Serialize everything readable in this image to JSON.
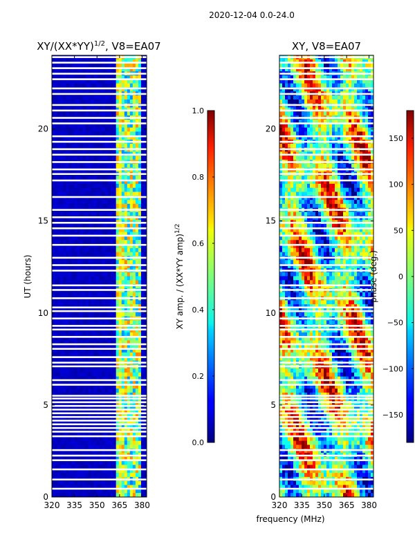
{
  "suptitle": "2020-12-04 0.0-24.0",
  "chart_data": [
    {
      "type": "heatmap",
      "title_base": "XY/(XX*YY)",
      "title_exp": "1/2",
      "title_suffix": ", V8=EA07",
      "xlabel": "",
      "ylabel": "UT (hours)",
      "xlim": [
        320,
        383
      ],
      "ylim": [
        0,
        24
      ],
      "xticks": [
        320,
        335,
        350,
        365,
        380
      ],
      "yticks": [
        0,
        5,
        10,
        15,
        20
      ],
      "colorbar": {
        "label_base": "XY amp. / (XX*YY amp)",
        "label_exp": "1/2",
        "range": [
          0.0,
          1.0
        ],
        "ticks": [
          "0.0",
          "0.2",
          "0.4",
          "0.6",
          "0.8",
          "1.0"
        ],
        "tick_values": [
          0.0,
          0.2,
          0.4,
          0.6,
          0.8,
          1.0
        ],
        "colormap": "jet"
      },
      "flagged_hours": [
        0.45,
        0.95,
        1.5,
        2.0,
        2.25,
        2.55,
        3.3,
        3.55,
        3.75,
        3.95,
        4.15,
        4.35,
        4.55,
        4.75,
        4.95,
        5.15,
        5.35,
        5.5,
        6.1,
        6.35,
        7.1,
        7.3,
        7.6,
        8.05,
        8.3,
        8.7,
        9.1,
        9.3,
        9.7,
        10.1,
        10.3,
        10.8,
        11.25,
        11.5,
        12.3,
        12.6,
        13.0,
        13.7,
        14.2,
        14.6,
        14.9,
        15.2,
        15.6,
        16.3,
        17.2,
        17.55,
        17.8,
        18.2,
        18.6,
        18.9,
        19.3,
        19.6,
        20.3,
        20.6,
        21.0,
        21.3,
        21.9,
        22.2,
        22.7,
        23.0,
        23.3,
        23.6,
        23.9
      ]
    },
    {
      "type": "heatmap",
      "title": "XY, V8=EA07",
      "xlabel": "frequency (MHz)",
      "ylabel": "",
      "xlim": [
        320,
        383
      ],
      "ylim": [
        0,
        24
      ],
      "xticks": [
        320,
        335,
        350,
        365,
        380
      ],
      "yticks": [
        0,
        5,
        10,
        15,
        20
      ],
      "colorbar": {
        "label": "phase (deg.)",
        "range": [
          -180,
          180
        ],
        "ticks": [
          "150",
          "100",
          "50",
          "0",
          "−50",
          "−100",
          "−150"
        ],
        "tick_values": [
          150,
          100,
          50,
          0,
          -50,
          -100,
          -150
        ],
        "colormap": "jet"
      },
      "flagged_hours": [
        0.45,
        0.95,
        1.5,
        2.0,
        2.25,
        2.55,
        3.3,
        3.55,
        3.75,
        3.95,
        4.15,
        4.35,
        4.55,
        4.75,
        4.95,
        5.15,
        5.35,
        5.5,
        6.1,
        6.35,
        7.1,
        7.3,
        7.6,
        8.05,
        8.3,
        8.7,
        9.1,
        9.3,
        9.7,
        10.1,
        10.3,
        10.8,
        11.25,
        11.5,
        12.3,
        12.6,
        13.0,
        13.7,
        14.2,
        14.6,
        14.9,
        15.2,
        15.6,
        16.3,
        17.2,
        17.55,
        17.8,
        18.2,
        18.6,
        18.9,
        19.3,
        19.6,
        20.3,
        20.6,
        21.0,
        21.3,
        21.9,
        22.2,
        22.7,
        23.0,
        23.3,
        23.6,
        23.9
      ]
    }
  ]
}
